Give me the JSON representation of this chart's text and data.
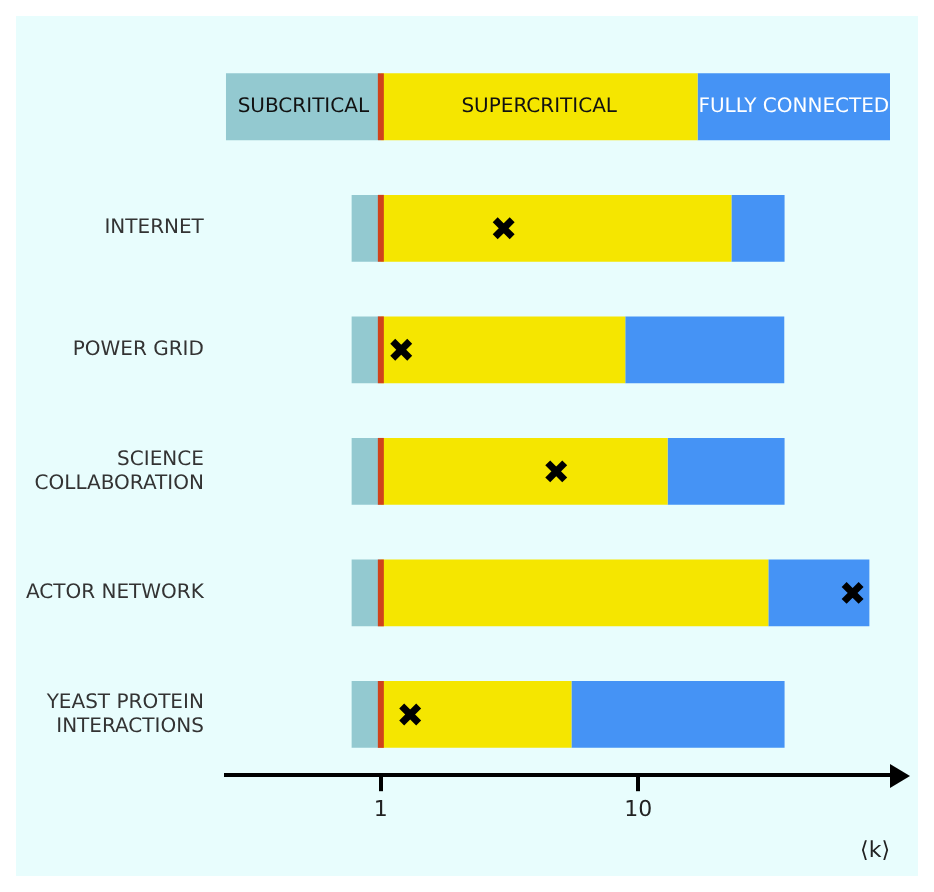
{
  "chart_data": {
    "type": "bar",
    "orientation": "horizontal",
    "xlabel": "⟨k⟩",
    "log": "x",
    "grid": false,
    "legend": false,
    "categories": [
      null,
      "INTERNET",
      "POWER GRID",
      "SCIENCE COLLABORATION",
      "ACTOR NETWORK",
      "YEAST PROTEIN INTERACTIONS"
    ],
    "xlim": [
      0.25,
      95
    ],
    "xticks": [
      1,
      10
    ],
    "ref_lines": [
      {
        "axis": "x",
        "value": 1,
        "color": "#d0421b"
      }
    ],
    "series": [
      {
        "name": "SUBCRITICAL",
        "color": "#93c9d0",
        "base": [
          0.25,
          0.77,
          0.77,
          0.77,
          0.77,
          0.77
        ],
        "values": [
          0.75,
          0.23,
          0.23,
          0.23,
          0.23,
          0.23
        ]
      },
      {
        "name": "SUPERCRITICAL",
        "color": "#f5e600",
        "base": [
          1,
          1,
          1,
          1,
          1,
          1
        ],
        "values": [
          16,
          22,
          7.9,
          12,
          31,
          4.5
        ]
      },
      {
        "name": "FULLY CONNECTED",
        "color": "#4593f5",
        "base": [
          17,
          23,
          8.9,
          13,
          32,
          5.5
        ],
        "values": [
          78,
          14,
          28,
          24,
          47,
          31.5
        ]
      },
      {
        "type": "scatter",
        "color": "#000000",
        "marker": "cross",
        "values": [
          null,
          3.0,
          1.2,
          4.8,
          68,
          1.3
        ]
      }
    ]
  }
}
